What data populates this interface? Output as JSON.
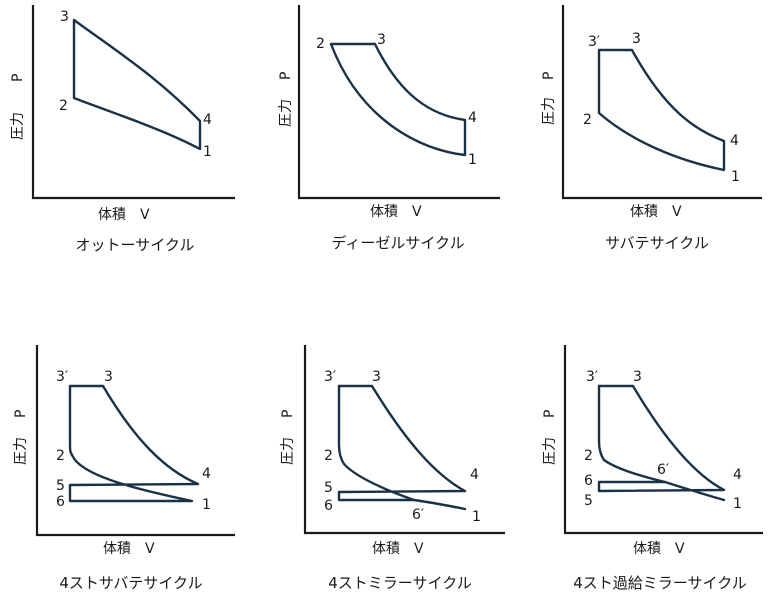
{
  "axes": {
    "x_label": "体積　V",
    "y_label_jp": "圧力",
    "y_label_sym": "P"
  },
  "diagrams": [
    {
      "title": "オットーサイクル",
      "points": [
        "3",
        "2",
        "4",
        "1"
      ]
    },
    {
      "title": "ディーゼルサイクル",
      "points": [
        "2",
        "3",
        "4",
        "1"
      ]
    },
    {
      "title": "サバテサイクル",
      "points": [
        "3′",
        "3",
        "2",
        "4",
        "1"
      ]
    },
    {
      "title": "4ストサバテサイクル",
      "points": [
        "3′",
        "3",
        "2",
        "4",
        "5",
        "6",
        "1"
      ]
    },
    {
      "title": "4ストミラーサイクル",
      "points": [
        "3′",
        "3",
        "2",
        "4",
        "5",
        "6",
        "1",
        "6′"
      ]
    },
    {
      "title": "4スト過給ミラーサイクル",
      "points": [
        "3′",
        "3",
        "2",
        "6′",
        "4",
        "6",
        "5",
        "1"
      ]
    }
  ]
}
